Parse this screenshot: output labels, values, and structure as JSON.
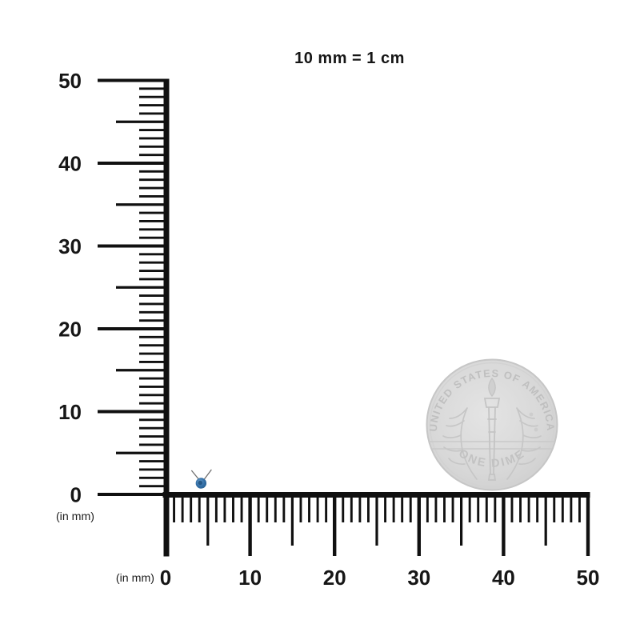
{
  "title": "10 mm = 1 cm",
  "rulers": {
    "unit_label": "(in mm)",
    "tick_labels": [
      "0",
      "10",
      "20",
      "30",
      "40",
      "50"
    ],
    "mm_max": 50,
    "tick_color": "#101010",
    "label_color": "#161616"
  },
  "specimen": {
    "position_mm": 4.2,
    "body_color": "#336fa7",
    "body_highlight": "#6ba0cb",
    "body_dark": "#1c4f7e"
  },
  "coin": {
    "top_text": "UNITED STATES OF AMERICA",
    "bottom_text": "ONE DIME",
    "face_color": "#d8d8d8",
    "detail_color": "#c2c2c2"
  }
}
